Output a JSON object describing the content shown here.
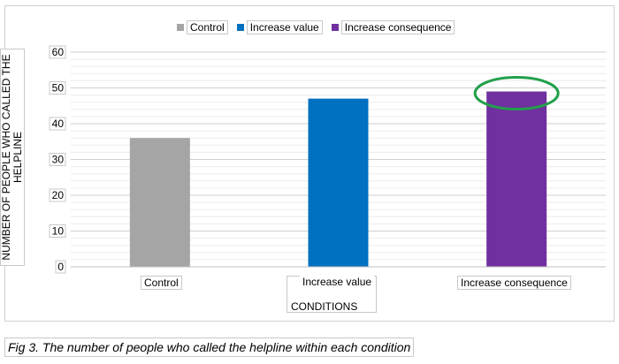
{
  "chart_data": {
    "type": "bar",
    "categories": [
      "Control",
      "Increase value",
      "Increase consequence"
    ],
    "values": [
      36,
      47,
      49
    ],
    "colors": [
      "#A5A5A5",
      "#0070C0",
      "#7030A0"
    ],
    "legend": [
      "Control",
      "Increase value",
      "Increase consequence"
    ],
    "legend_position": "top",
    "xlabel": "CONDITIONS",
    "ylabel": "NUMBER OF PEOPLE WHO CALLED THE HELPLINE",
    "ylim": [
      0,
      60
    ],
    "yticks": [
      "0",
      "10",
      "20",
      "30",
      "40",
      "50",
      "60"
    ],
    "grid": true,
    "highlight": {
      "category": "Increase consequence",
      "shape": "ellipse",
      "color": "#21A04A"
    }
  },
  "caption": "Fig 3. The number of people who called the helpline within each condition"
}
